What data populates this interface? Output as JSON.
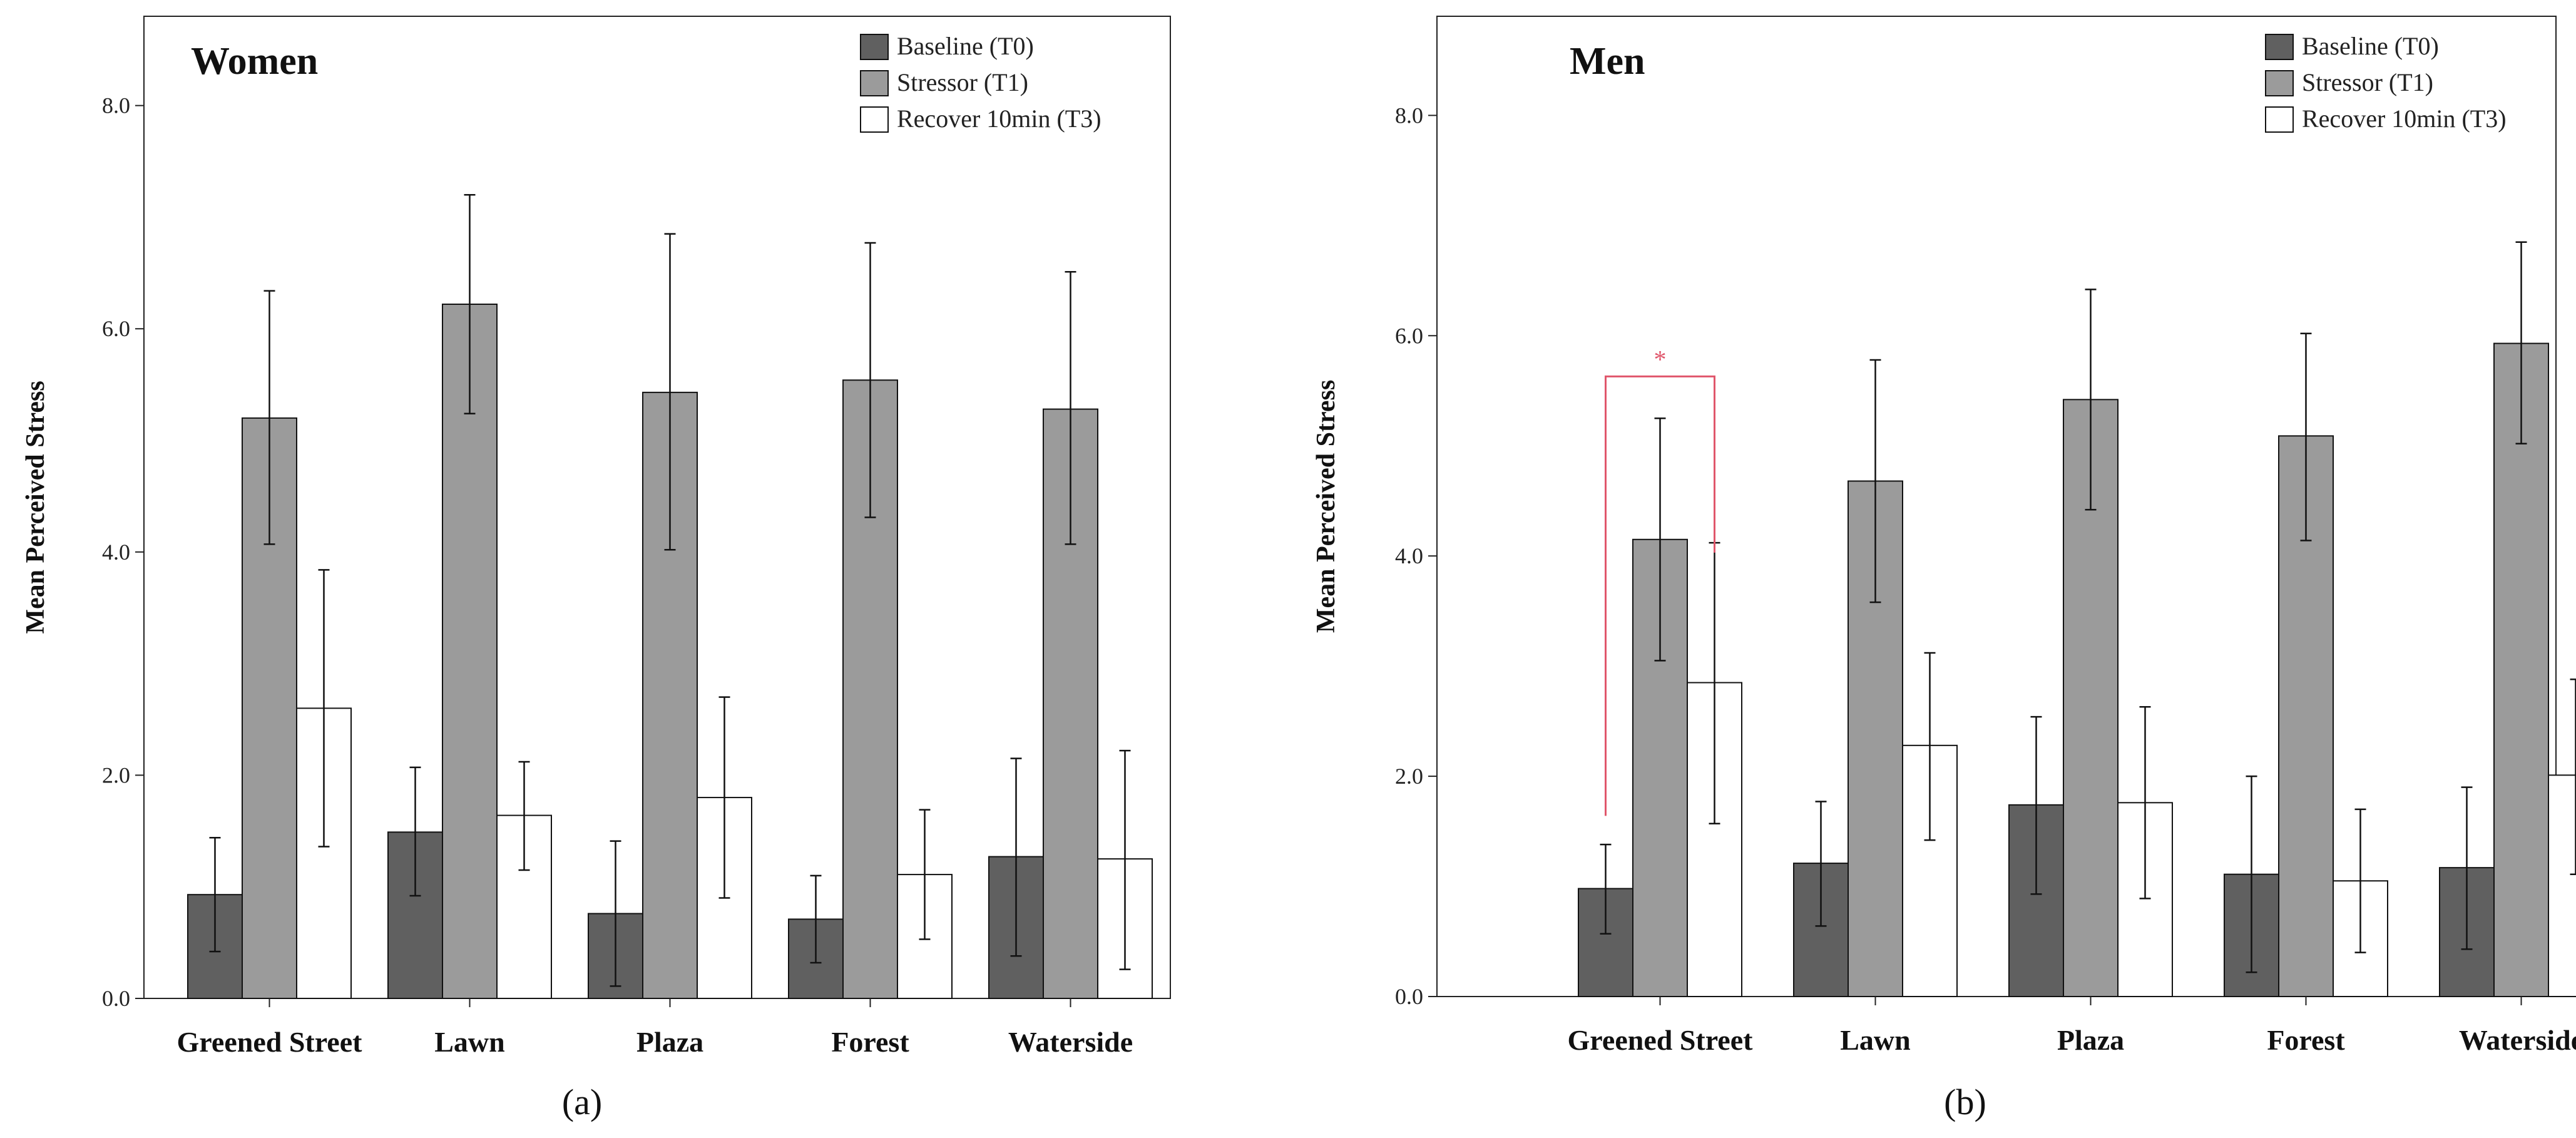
{
  "panel_labels": [
    "(a)",
    "(b)"
  ],
  "chart_data": [
    {
      "type": "bar",
      "title": "Women",
      "panel_label": "(a)",
      "xlabel": "",
      "ylabel": "Mean Perceived Stress",
      "ylim": [
        0,
        8.8
      ],
      "yticks": [
        "0.0",
        "2.0",
        "4.0",
        "6.0",
        "8.0"
      ],
      "ytick_values": [
        0,
        2,
        4,
        6,
        8
      ],
      "grid": false,
      "legend_position": "top-right",
      "categories": [
        "Greened Street",
        "Lawn",
        "Plaza",
        "Forest",
        "Waterside"
      ],
      "series": [
        {
          "name": "Baseline (T0)",
          "color": "#606060",
          "values": [
            0.93,
            1.49,
            0.76,
            0.71,
            1.27
          ],
          "err_low": [
            0.42,
            0.92,
            0.11,
            0.32,
            0.38
          ],
          "err_high": [
            1.44,
            2.07,
            1.41,
            1.1,
            2.15
          ]
        },
        {
          "name": "Stressor (T1)",
          "color": "#9b9b9b",
          "values": [
            5.2,
            6.22,
            5.43,
            5.54,
            5.28
          ],
          "err_low": [
            4.07,
            5.24,
            4.02,
            4.31,
            4.07
          ],
          "err_high": [
            6.34,
            7.2,
            6.85,
            6.77,
            6.51
          ]
        },
        {
          "name": "Recover 10min (T3)",
          "color": "#ffffff",
          "values": [
            2.6,
            1.64,
            1.8,
            1.11,
            1.25
          ],
          "err_low": [
            1.36,
            1.15,
            0.9,
            0.53,
            0.26
          ],
          "err_high": [
            3.84,
            2.12,
            2.7,
            1.69,
            2.22
          ]
        }
      ],
      "annotations": []
    },
    {
      "type": "bar",
      "title": "Men",
      "panel_label": "(b)",
      "xlabel": "",
      "ylabel": "Mean Perceived Stress",
      "ylim": [
        0,
        8.9
      ],
      "yticks": [
        "0.0",
        "2.0",
        "4.0",
        "6.0",
        "8.0"
      ],
      "ytick_values": [
        0,
        2,
        4,
        6,
        8
      ],
      "grid": false,
      "legend_position": "top-right",
      "categories": [
        "Greened Street",
        "Lawn",
        "Plaza",
        "Forest",
        "Waterside"
      ],
      "series": [
        {
          "name": "Baseline (T0)",
          "color": "#606060",
          "values": [
            0.98,
            1.21,
            1.74,
            1.11,
            1.17
          ],
          "err_low": [
            0.57,
            0.64,
            0.93,
            0.22,
            0.43
          ],
          "err_high": [
            1.38,
            1.77,
            2.54,
            2.0,
            1.9
          ]
        },
        {
          "name": "Stressor (T1)",
          "color": "#9b9b9b",
          "values": [
            4.15,
            4.68,
            5.42,
            5.09,
            5.93
          ],
          "err_low": [
            3.05,
            3.58,
            4.42,
            4.14,
            5.02
          ],
          "err_high": [
            5.25,
            5.78,
            6.42,
            6.02,
            6.85
          ]
        },
        {
          "name": "Recover 10min (T3)",
          "color": "#ffffff",
          "values": [
            2.85,
            2.28,
            1.76,
            1.05,
            2.01
          ],
          "err_low": [
            1.57,
            1.42,
            0.89,
            0.4,
            1.11
          ],
          "err_high": [
            4.12,
            3.12,
            2.63,
            1.7,
            2.88
          ]
        }
      ],
      "annotations": [
        {
          "type": "significance-bracket",
          "text": "*",
          "color": "#e0566b",
          "category_index": 0,
          "from_series": 0,
          "to_series": 2,
          "y_left": 1.64,
          "y_right": 4.03,
          "y_top": 5.63
        }
      ]
    }
  ]
}
